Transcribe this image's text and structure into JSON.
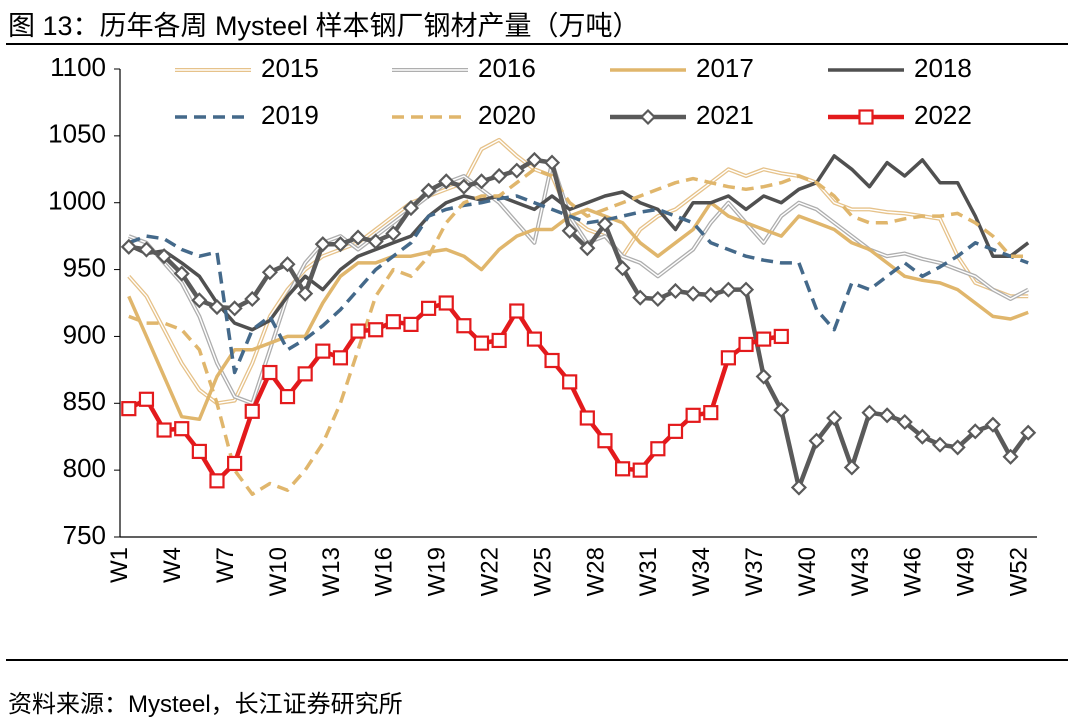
{
  "chart_data": {
    "type": "line",
    "title": "图 13：历年各周 Mysteel 样本钢厂钢材产量（万吨）",
    "source": "资料来源：Mysteel，长江证券研究所",
    "categories": [
      "W1",
      null,
      null,
      "W4",
      null,
      null,
      "W7",
      null,
      null,
      "W10",
      null,
      null,
      "W13",
      null,
      null,
      "W16",
      null,
      null,
      "W19",
      null,
      null,
      "W22",
      null,
      null,
      "W25",
      null,
      null,
      "W28",
      null,
      null,
      "W31",
      null,
      null,
      "W34",
      null,
      null,
      "W37",
      null,
      null,
      "W40",
      null,
      null,
      "W43",
      null,
      null,
      "W46",
      null,
      null,
      "W49",
      null,
      null,
      "W52"
    ],
    "ylim": [
      750,
      1100
    ],
    "yticks": [
      750,
      800,
      850,
      900,
      950,
      1000,
      1050,
      1100
    ],
    "grid": false,
    "legend": "top",
    "series": [
      {
        "name": "2015",
        "color": "#e6c28a",
        "style": "double",
        "values": [
          945,
          930,
          905,
          880,
          860,
          850,
          852,
          880,
          915,
          935,
          950,
          960,
          965,
          970,
          980,
          990,
          1000,
          1005,
          1010,
          1015,
          1040,
          1047,
          1035,
          1025,
          1020,
          990,
          980,
          975,
          960,
          980,
          990,
          995,
          1005,
          1015,
          1025,
          1020,
          1025,
          1022,
          1020,
          1015,
          1000,
          995,
          995,
          993,
          992,
          990,
          988,
          960,
          940,
          935,
          930,
          930
        ]
      },
      {
        "name": "2016",
        "color": "#aeaeae",
        "style": "double",
        "values": [
          975,
          970,
          955,
          940,
          915,
          880,
          855,
          850,
          890,
          930,
          955,
          970,
          975,
          965,
          975,
          985,
          995,
          1005,
          1015,
          1020,
          1010,
          1000,
          985,
          970,
          1030,
          990,
          970,
          975,
          960,
          955,
          945,
          955,
          965,
          985,
          1000,
          985,
          970,
          990,
          1000,
          995,
          985,
          975,
          965,
          960,
          962,
          958,
          955,
          950,
          945,
          935,
          928,
          935
        ]
      },
      {
        "name": "2017",
        "color": "#e0b66c",
        "style": "solid",
        "values": [
          930,
          900,
          870,
          840,
          838,
          870,
          890,
          890,
          895,
          900,
          900,
          925,
          945,
          955,
          955,
          960,
          960,
          963,
          965,
          960,
          950,
          965,
          975,
          980,
          980,
          990,
          995,
          990,
          985,
          970,
          960,
          970,
          980,
          1000,
          990,
          985,
          980,
          975,
          990,
          985,
          980,
          970,
          965,
          955,
          945,
          942,
          940,
          935,
          925,
          915,
          913,
          918
        ]
      },
      {
        "name": "2018",
        "color": "#505050",
        "style": "solid",
        "values": [
          968,
          962,
          964,
          955,
          945,
          925,
          910,
          905,
          912,
          930,
          945,
          935,
          950,
          960,
          965,
          970,
          975,
          990,
          1000,
          1005,
          1002,
          1005,
          1000,
          995,
          1005,
          995,
          1000,
          1005,
          1008,
          1000,
          995,
          980,
          1000,
          1000,
          1005,
          995,
          1005,
          1000,
          1010,
          1015,
          1035,
          1025,
          1012,
          1030,
          1020,
          1032,
          1015,
          1015,
          990,
          960,
          960,
          970
        ]
      },
      {
        "name": "2019",
        "color": "#44698a",
        "style": "dashed",
        "values": [
          970,
          975,
          973,
          965,
          960,
          963,
          873,
          905,
          915,
          890,
          898,
          908,
          920,
          935,
          950,
          960,
          970,
          990,
          995,
          998,
          1000,
          1003,
          1005,
          1000,
          995,
          990,
          985,
          987,
          990,
          993,
          995,
          990,
          985,
          970,
          965,
          960,
          957,
          955,
          955,
          920,
          905,
          940,
          935,
          945,
          955,
          945,
          952,
          960,
          970,
          965,
          960,
          955
        ]
      },
      {
        "name": "2020",
        "color": "#e0b66c",
        "style": "dashed",
        "values": [
          915,
          910,
          910,
          905,
          890,
          850,
          800,
          782,
          790,
          785,
          800,
          820,
          850,
          890,
          930,
          950,
          945,
          960,
          985,
          1000,
          1005,
          1005,
          1015,
          1025,
          1020,
          1000,
          990,
          995,
          1000,
          1005,
          1010,
          1015,
          1018,
          1015,
          1012,
          1010,
          1012,
          1015,
          1020,
          1015,
          1005,
          990,
          985,
          985,
          988,
          990,
          990,
          992,
          985,
          975,
          960,
          960
        ]
      },
      {
        "name": "2021",
        "color": "#5a5a5a",
        "style": "solid",
        "marker": "diamond",
        "values": [
          967,
          965,
          960,
          947,
          927,
          922,
          921,
          928,
          948,
          954,
          932,
          969,
          969,
          974,
          971,
          977,
          996,
          1009,
          1016,
          1012,
          1016,
          1020,
          1024,
          1032,
          1030,
          979,
          966,
          984,
          951,
          929,
          928,
          934,
          932,
          931,
          935,
          935,
          870,
          845,
          787,
          822,
          839,
          802,
          843,
          841,
          836,
          825,
          819,
          817,
          829,
          834,
          810,
          828
        ]
      },
      {
        "name": "2022",
        "color": "#e31a1c",
        "style": "solid",
        "marker": "square",
        "values": [
          846,
          853,
          830,
          831,
          814,
          792,
          805,
          844,
          873,
          855,
          872,
          889,
          884,
          904,
          905,
          911,
          909,
          921,
          925,
          908,
          895,
          897,
          919,
          898,
          882,
          866,
          839,
          822,
          801,
          800,
          816,
          829,
          841,
          843,
          884,
          894,
          898,
          900,
          null,
          null,
          null,
          null,
          null,
          null,
          null,
          null,
          null,
          null,
          null,
          null,
          null,
          null
        ]
      }
    ]
  }
}
